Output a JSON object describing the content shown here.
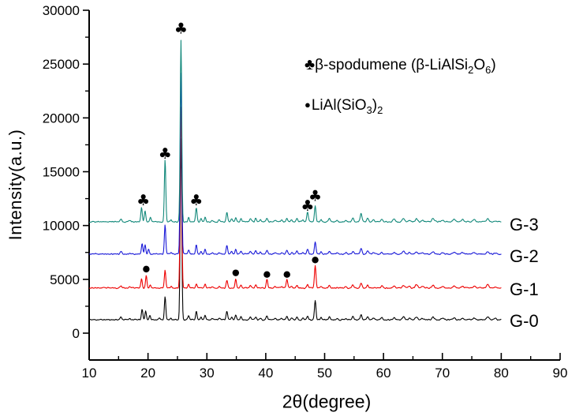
{
  "chart_data": {
    "type": "line",
    "title": "",
    "xlabel": "2θ(degree)",
    "ylabel": "Intensity(a.u.)",
    "xlim": [
      10,
      90
    ],
    "ylim": [
      0,
      30000
    ],
    "grid": false,
    "x_ticks": [
      {
        "v": 10,
        "label": "10"
      },
      {
        "v": 20,
        "label": "20"
      },
      {
        "v": 30,
        "label": "30"
      },
      {
        "v": 40,
        "label": "40"
      },
      {
        "v": 50,
        "label": "50"
      },
      {
        "v": 60,
        "label": "60"
      },
      {
        "v": 70,
        "label": "70"
      },
      {
        "v": 80,
        "label": "80"
      },
      {
        "v": 90,
        "label": "90"
      }
    ],
    "y_ticks": [
      {
        "v": 0,
        "label": "0"
      },
      {
        "v": 5000,
        "label": "5000"
      },
      {
        "v": 10000,
        "label": "10000"
      },
      {
        "v": 15000,
        "label": "15000"
      },
      {
        "v": 20000,
        "label": "20000"
      },
      {
        "v": 25000,
        "label": "25000"
      },
      {
        "v": 30000,
        "label": "30000"
      }
    ],
    "legend_plain": [
      {
        "symbol": "♣",
        "label": "β-spodumene (β-LiAlSi2O6)"
      },
      {
        "symbol": "●",
        "label": "LiAl(SiO3)2"
      }
    ],
    "x_range_of_data": [
      10,
      80
    ],
    "series": [
      {
        "name": "G-0",
        "color": "#000000",
        "baseline": 1250,
        "noise_seed": 11,
        "peaks": [
          [
            15.4,
            260,
            0.15
          ],
          [
            16.9,
            120,
            0.15
          ],
          [
            19.0,
            950,
            0.12
          ],
          [
            19.6,
            800,
            0.12
          ],
          [
            20.3,
            380,
            0.12
          ],
          [
            22.0,
            120,
            0.15
          ],
          [
            22.9,
            2150,
            0.12
          ],
          [
            23.9,
            160,
            0.12
          ],
          [
            25.6,
            16800,
            0.13
          ],
          [
            26.9,
            380,
            0.12
          ],
          [
            28.2,
            800,
            0.12
          ],
          [
            29.0,
            280,
            0.12
          ],
          [
            29.7,
            400,
            0.12
          ],
          [
            30.9,
            140,
            0.15
          ],
          [
            32.1,
            140,
            0.15
          ],
          [
            33.4,
            800,
            0.13
          ],
          [
            34.2,
            280,
            0.12
          ],
          [
            34.9,
            400,
            0.12
          ],
          [
            35.8,
            300,
            0.12
          ],
          [
            37.4,
            280,
            0.13
          ],
          [
            38.3,
            300,
            0.13
          ],
          [
            39.1,
            180,
            0.13
          ],
          [
            40.2,
            400,
            0.13
          ],
          [
            41.6,
            120,
            0.15
          ],
          [
            42.7,
            140,
            0.15
          ],
          [
            43.6,
            320,
            0.13
          ],
          [
            44.4,
            180,
            0.13
          ],
          [
            45.3,
            280,
            0.13
          ],
          [
            46.3,
            140,
            0.13
          ],
          [
            47.1,
            340,
            0.13
          ],
          [
            48.4,
            1750,
            0.13
          ],
          [
            49.4,
            200,
            0.13
          ],
          [
            50.8,
            260,
            0.15
          ],
          [
            52.1,
            120,
            0.15
          ],
          [
            53.6,
            140,
            0.15
          ],
          [
            54.8,
            300,
            0.15
          ],
          [
            56.2,
            480,
            0.15
          ],
          [
            57.3,
            300,
            0.15
          ],
          [
            58.3,
            150,
            0.15
          ],
          [
            59.7,
            200,
            0.15
          ],
          [
            61.8,
            190,
            0.18
          ],
          [
            63.4,
            260,
            0.18
          ],
          [
            64.4,
            150,
            0.18
          ],
          [
            65.6,
            220,
            0.18
          ],
          [
            66.6,
            120,
            0.18
          ],
          [
            68.4,
            240,
            0.2
          ],
          [
            70.1,
            130,
            0.2
          ],
          [
            72.0,
            200,
            0.2
          ],
          [
            73.4,
            160,
            0.2
          ],
          [
            75.4,
            180,
            0.2
          ],
          [
            77.7,
            250,
            0.2
          ],
          [
            79.0,
            110,
            0.2
          ]
        ]
      },
      {
        "name": "G-1",
        "color": "#ee0000",
        "baseline": 4200,
        "noise_seed": 23,
        "peaks": [
          [
            15.4,
            200,
            0.15
          ],
          [
            16.9,
            110,
            0.15
          ],
          [
            18.9,
            880,
            0.12
          ],
          [
            19.7,
            1150,
            0.12
          ],
          [
            20.4,
            300,
            0.12
          ],
          [
            22.9,
            1650,
            0.12
          ],
          [
            23.9,
            150,
            0.12
          ],
          [
            25.6,
            16800,
            0.13
          ],
          [
            26.9,
            350,
            0.12
          ],
          [
            28.2,
            420,
            0.12
          ],
          [
            29.7,
            380,
            0.12
          ],
          [
            30.9,
            130,
            0.15
          ],
          [
            32.1,
            130,
            0.15
          ],
          [
            33.4,
            700,
            0.13
          ],
          [
            34.9,
            850,
            0.12
          ],
          [
            35.8,
            280,
            0.12
          ],
          [
            37.4,
            260,
            0.13
          ],
          [
            38.3,
            280,
            0.13
          ],
          [
            40.2,
            800,
            0.13
          ],
          [
            41.6,
            120,
            0.15
          ],
          [
            42.7,
            140,
            0.15
          ],
          [
            43.6,
            800,
            0.13
          ],
          [
            44.4,
            170,
            0.13
          ],
          [
            45.3,
            260,
            0.13
          ],
          [
            47.1,
            300,
            0.13
          ],
          [
            48.4,
            2100,
            0.13
          ],
          [
            49.4,
            190,
            0.13
          ],
          [
            50.8,
            250,
            0.15
          ],
          [
            53.6,
            130,
            0.15
          ],
          [
            54.8,
            280,
            0.15
          ],
          [
            56.2,
            430,
            0.15
          ],
          [
            57.3,
            280,
            0.15
          ],
          [
            59.7,
            190,
            0.15
          ],
          [
            61.8,
            180,
            0.18
          ],
          [
            63.4,
            250,
            0.18
          ],
          [
            64.4,
            150,
            0.18
          ],
          [
            65.6,
            330,
            0.18
          ],
          [
            66.6,
            120,
            0.18
          ],
          [
            68.4,
            230,
            0.2
          ],
          [
            70.1,
            120,
            0.2
          ],
          [
            72.0,
            190,
            0.2
          ],
          [
            73.4,
            150,
            0.2
          ],
          [
            75.4,
            170,
            0.2
          ],
          [
            77.7,
            330,
            0.2
          ],
          [
            79.0,
            110,
            0.2
          ]
        ]
      },
      {
        "name": "G-2",
        "color": "#1a1ad8",
        "baseline": 7350,
        "noise_seed": 37,
        "peaks": [
          [
            15.4,
            230,
            0.15
          ],
          [
            16.9,
            110,
            0.15
          ],
          [
            19.0,
            1000,
            0.12
          ],
          [
            19.5,
            900,
            0.12
          ],
          [
            20.1,
            480,
            0.12
          ],
          [
            22.9,
            2700,
            0.12
          ],
          [
            23.9,
            150,
            0.12
          ],
          [
            25.6,
            16800,
            0.13
          ],
          [
            26.9,
            380,
            0.12
          ],
          [
            28.2,
            900,
            0.12
          ],
          [
            29.0,
            260,
            0.12
          ],
          [
            29.7,
            430,
            0.12
          ],
          [
            30.9,
            130,
            0.15
          ],
          [
            32.1,
            130,
            0.15
          ],
          [
            33.4,
            820,
            0.13
          ],
          [
            34.2,
            260,
            0.12
          ],
          [
            34.9,
            430,
            0.12
          ],
          [
            35.8,
            290,
            0.12
          ],
          [
            37.4,
            270,
            0.13
          ],
          [
            38.3,
            290,
            0.13
          ],
          [
            39.1,
            170,
            0.13
          ],
          [
            40.2,
            380,
            0.13
          ],
          [
            41.6,
            120,
            0.15
          ],
          [
            42.7,
            130,
            0.15
          ],
          [
            43.6,
            320,
            0.13
          ],
          [
            44.4,
            170,
            0.13
          ],
          [
            45.3,
            270,
            0.13
          ],
          [
            46.3,
            130,
            0.13
          ],
          [
            47.1,
            430,
            0.13
          ],
          [
            48.4,
            1100,
            0.13
          ],
          [
            49.4,
            190,
            0.13
          ],
          [
            50.8,
            250,
            0.15
          ],
          [
            52.1,
            120,
            0.15
          ],
          [
            53.6,
            130,
            0.15
          ],
          [
            54.8,
            290,
            0.15
          ],
          [
            56.2,
            520,
            0.15
          ],
          [
            57.3,
            290,
            0.15
          ],
          [
            58.3,
            150,
            0.15
          ],
          [
            59.7,
            190,
            0.15
          ],
          [
            61.8,
            180,
            0.18
          ],
          [
            63.4,
            250,
            0.18
          ],
          [
            64.4,
            150,
            0.18
          ],
          [
            65.6,
            210,
            0.18
          ],
          [
            66.6,
            110,
            0.18
          ],
          [
            68.4,
            230,
            0.2
          ],
          [
            70.1,
            120,
            0.2
          ],
          [
            72.0,
            190,
            0.2
          ],
          [
            73.4,
            150,
            0.2
          ],
          [
            75.4,
            170,
            0.2
          ],
          [
            77.7,
            240,
            0.2
          ],
          [
            79.0,
            100,
            0.2
          ]
        ]
      },
      {
        "name": "G-3",
        "color": "#13897b",
        "baseline": 10350,
        "noise_seed": 51,
        "peaks": [
          [
            15.4,
            300,
            0.15
          ],
          [
            16.9,
            120,
            0.15
          ],
          [
            18.9,
            1350,
            0.12
          ],
          [
            19.5,
            1000,
            0.12
          ],
          [
            20.4,
            400,
            0.12
          ],
          [
            22.9,
            5800,
            0.12
          ],
          [
            23.9,
            160,
            0.12
          ],
          [
            25.6,
            16850,
            0.13
          ],
          [
            26.9,
            430,
            0.12
          ],
          [
            28.2,
            1350,
            0.12
          ],
          [
            29.0,
            280,
            0.12
          ],
          [
            29.7,
            450,
            0.12
          ],
          [
            30.9,
            140,
            0.15
          ],
          [
            32.1,
            140,
            0.15
          ],
          [
            33.4,
            900,
            0.13
          ],
          [
            34.2,
            280,
            0.12
          ],
          [
            34.9,
            420,
            0.12
          ],
          [
            35.8,
            320,
            0.12
          ],
          [
            37.4,
            290,
            0.13
          ],
          [
            38.3,
            300,
            0.13
          ],
          [
            39.1,
            180,
            0.13
          ],
          [
            40.2,
            370,
            0.13
          ],
          [
            41.6,
            120,
            0.15
          ],
          [
            42.7,
            140,
            0.15
          ],
          [
            43.6,
            320,
            0.13
          ],
          [
            44.4,
            180,
            0.13
          ],
          [
            45.3,
            330,
            0.13
          ],
          [
            46.3,
            140,
            0.13
          ],
          [
            47.1,
            950,
            0.13
          ],
          [
            48.4,
            1500,
            0.13
          ],
          [
            49.4,
            200,
            0.13
          ],
          [
            50.8,
            300,
            0.15
          ],
          [
            52.1,
            120,
            0.15
          ],
          [
            53.6,
            140,
            0.15
          ],
          [
            54.8,
            330,
            0.15
          ],
          [
            56.2,
            780,
            0.15
          ],
          [
            57.3,
            330,
            0.15
          ],
          [
            58.3,
            150,
            0.15
          ],
          [
            59.7,
            250,
            0.15
          ],
          [
            61.8,
            250,
            0.18
          ],
          [
            63.4,
            320,
            0.18
          ],
          [
            64.4,
            160,
            0.18
          ],
          [
            65.6,
            260,
            0.18
          ],
          [
            66.6,
            130,
            0.18
          ],
          [
            68.4,
            300,
            0.2
          ],
          [
            70.1,
            150,
            0.2
          ],
          [
            72.0,
            240,
            0.2
          ],
          [
            73.4,
            180,
            0.2
          ],
          [
            75.4,
            230,
            0.2
          ],
          [
            77.7,
            300,
            0.2
          ],
          [
            79.0,
            120,
            0.2
          ]
        ]
      }
    ],
    "markers": {
      "club_symbol": "♣",
      "dot_symbol": "●",
      "clubs_on_series": "G-3",
      "dots_on_series": "G-1",
      "clubs": [
        [
          19.2,
          12350
        ],
        [
          22.9,
          16700
        ],
        [
          25.6,
          28300
        ],
        [
          28.2,
          12350
        ],
        [
          47.1,
          11850
        ],
        [
          48.4,
          12750
        ]
      ],
      "dots": [
        [
          19.7,
          5950
        ],
        [
          34.9,
          5600
        ],
        [
          40.2,
          5450
        ],
        [
          43.6,
          5450
        ],
        [
          48.4,
          6800
        ]
      ]
    }
  },
  "axis_titles": {
    "y": "Intensity(a.u.)",
    "x": "2θ(degree)"
  },
  "legend": {
    "item1": {
      "symbol": "♣",
      "t1": "β-spodumene (β-LiAlSi",
      "s1": "2",
      "t2": "O",
      "s2": "6",
      "t3": ")"
    },
    "item2": {
      "symbol": "●",
      "t1": "LiAl(SiO",
      "s1": "3",
      "t2": ")",
      "s2": "2"
    }
  },
  "series_labels": {
    "g3": "G-3",
    "g2": "G-2",
    "g1": "G-1",
    "g0": "G-0"
  },
  "colors": {
    "g0": "#000000",
    "g1": "#ee0000",
    "g2": "#1a1ad8",
    "g3": "#13897b",
    "axis": "#000000",
    "background": "#ffffff"
  }
}
